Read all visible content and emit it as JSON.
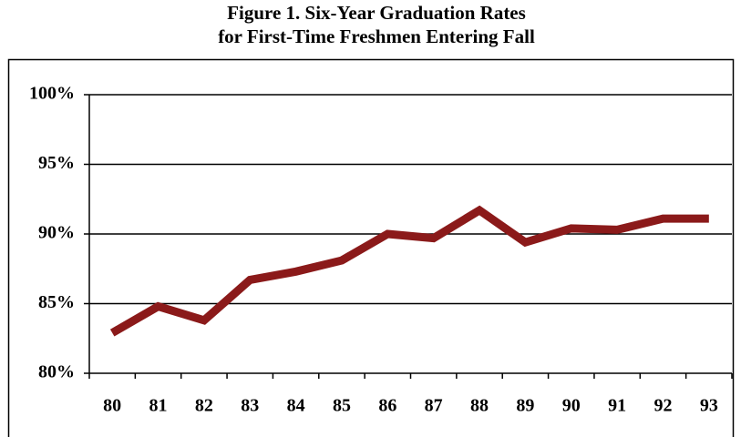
{
  "chart_data": {
    "type": "line",
    "title": [
      "Figure 1. Six-Year Graduation Rates",
      "for First-Time Freshmen Entering Fall"
    ],
    "categories": [
      "80",
      "81",
      "82",
      "83",
      "84",
      "85",
      "86",
      "87",
      "88",
      "89",
      "90",
      "91",
      "92",
      "93"
    ],
    "series": [
      {
        "name": null,
        "color": "#8b1a1a",
        "values": [
          82.9,
          84.8,
          83.8,
          86.7,
          87.3,
          88.1,
          90.0,
          89.7,
          91.7,
          89.4,
          90.4,
          90.3,
          91.1,
          91.1
        ]
      }
    ],
    "ylim": [
      80,
      100
    ],
    "yticks": [
      {
        "value": 80,
        "label": "80%"
      },
      {
        "value": 85,
        "label": "85%"
      },
      {
        "value": 90,
        "label": "90%"
      },
      {
        "value": 95,
        "label": "95%"
      },
      {
        "value": 100,
        "label": "100%"
      }
    ],
    "grid": true
  }
}
